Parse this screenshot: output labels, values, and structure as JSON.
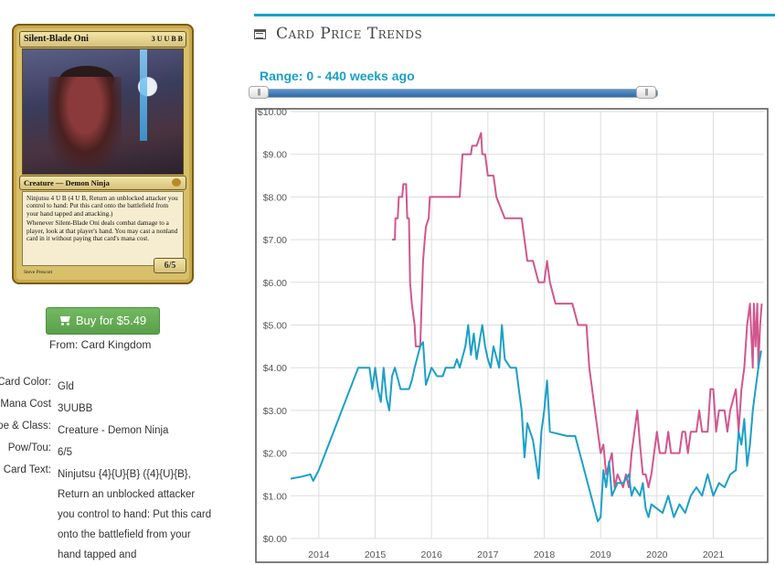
{
  "card": {
    "name": "Silent-Blade Oni",
    "cost": "3 U U B B",
    "type_line": "Creature — Demon Ninja",
    "text_1": "Ninjutsu 4 U B (4 U B, Return an unblocked attacker you control to hand: Put this card onto the battlefield from your hand tapped and attacking.)",
    "text_2": "Whenever Silent-Blade Oni deals combat damage to a player, look at that player's hand. You may cast a nonland card in it without paying that card's mana cost.",
    "pt": "6/5",
    "artist": "Steve Prescott"
  },
  "buy": {
    "label": "Buy for $5.49",
    "from": "From: Card Kingdom"
  },
  "details": [
    {
      "label": "Card Color:",
      "value": "Gld"
    },
    {
      "label": "Mana Cost",
      "value": "3UUBB"
    },
    {
      "label": "Type & Class:",
      "value": "Creature - Demon Ninja"
    },
    {
      "label": "Pow/Tou:",
      "value": "6/5"
    },
    {
      "label": "Card Text:",
      "value": "Ninjutsu {4}{U}{B} ({4}{U}{B}, Return an unblocked attacker you control to hand: Put this card onto the battlefield from your hand tapped and"
    }
  ],
  "panel": {
    "title": "Card Price Trends",
    "range": "Range: 0 - 440 weeks ago"
  },
  "colors": {
    "accent": "#17a2c4",
    "series_pink": "#d1568f",
    "series_blue": "#1aa0c8",
    "buy_green": "#5fa84f"
  },
  "chart_data": {
    "type": "line",
    "y_ticks": [
      "$0.00",
      "$1.00",
      "$2.00",
      "$3.00",
      "$4.00",
      "$5.00",
      "$6.00",
      "$7.00",
      "$8.00",
      "$9.00",
      "$10.00"
    ],
    "x_ticks": [
      "2014",
      "2015",
      "2016",
      "2017",
      "2018",
      "2019",
      "2020",
      "2021"
    ],
    "ylim": [
      0,
      10
    ],
    "xlim": [
      2013.5,
      2021.9
    ],
    "grid": true,
    "series": [
      {
        "color": "#d1568f",
        "points": [
          [
            2015.3,
            7.0
          ],
          [
            2015.35,
            7.0
          ],
          [
            2015.36,
            7.5
          ],
          [
            2015.4,
            7.5
          ],
          [
            2015.42,
            8.0
          ],
          [
            2015.48,
            8.0
          ],
          [
            2015.5,
            8.3
          ],
          [
            2015.55,
            8.3
          ],
          [
            2015.57,
            7.5
          ],
          [
            2015.6,
            7.5
          ],
          [
            2015.62,
            6.0
          ],
          [
            2015.65,
            5.5
          ],
          [
            2015.7,
            5.0
          ],
          [
            2015.72,
            4.5
          ],
          [
            2015.8,
            4.5
          ],
          [
            2015.85,
            6.5
          ],
          [
            2015.88,
            7.0
          ],
          [
            2015.9,
            7.3
          ],
          [
            2015.95,
            7.5
          ],
          [
            2015.97,
            8.0
          ],
          [
            2016.5,
            8.0
          ],
          [
            2016.55,
            9.0
          ],
          [
            2016.7,
            9.0
          ],
          [
            2016.72,
            9.2
          ],
          [
            2016.8,
            9.2
          ],
          [
            2016.88,
            9.5
          ],
          [
            2016.9,
            9.0
          ],
          [
            2016.95,
            9.0
          ],
          [
            2017.0,
            8.5
          ],
          [
            2017.1,
            8.5
          ],
          [
            2017.15,
            8.0
          ],
          [
            2017.3,
            7.5
          ],
          [
            2017.6,
            7.5
          ],
          [
            2017.65,
            7.0
          ],
          [
            2017.7,
            6.5
          ],
          [
            2017.8,
            6.5
          ],
          [
            2017.9,
            6.0
          ],
          [
            2018.0,
            6.0
          ],
          [
            2018.05,
            6.5
          ],
          [
            2018.1,
            6.0
          ],
          [
            2018.2,
            5.5
          ],
          [
            2018.5,
            5.5
          ],
          [
            2018.6,
            5.0
          ],
          [
            2018.75,
            5.0
          ],
          [
            2018.8,
            4.0
          ],
          [
            2018.9,
            3.0
          ],
          [
            2019.0,
            2.0
          ],
          [
            2019.05,
            2.2
          ],
          [
            2019.1,
            1.5
          ],
          [
            2019.2,
            2.0
          ],
          [
            2019.25,
            1.2
          ],
          [
            2019.3,
            1.5
          ],
          [
            2019.4,
            1.2
          ],
          [
            2019.45,
            1.5
          ],
          [
            2019.5,
            1.2
          ],
          [
            2019.55,
            2.0
          ],
          [
            2019.6,
            2.5
          ],
          [
            2019.65,
            3.0
          ],
          [
            2019.7,
            2.2
          ],
          [
            2019.75,
            1.5
          ],
          [
            2019.8,
            1.5
          ],
          [
            2019.85,
            1.2
          ],
          [
            2019.9,
            1.5
          ],
          [
            2019.95,
            2.0
          ],
          [
            2020.0,
            2.5
          ],
          [
            2020.05,
            2.0
          ],
          [
            2020.15,
            2.0
          ],
          [
            2020.2,
            2.5
          ],
          [
            2020.25,
            2.0
          ],
          [
            2020.4,
            2.0
          ],
          [
            2020.45,
            2.5
          ],
          [
            2020.5,
            2.5
          ],
          [
            2020.55,
            2.0
          ],
          [
            2020.6,
            2.5
          ],
          [
            2020.7,
            2.5
          ],
          [
            2020.75,
            3.0
          ],
          [
            2020.8,
            2.5
          ],
          [
            2020.9,
            2.5
          ],
          [
            2020.95,
            3.5
          ],
          [
            2021.0,
            3.5
          ],
          [
            2021.05,
            2.5
          ],
          [
            2021.1,
            3.0
          ],
          [
            2021.2,
            3.0
          ],
          [
            2021.25,
            2.5
          ],
          [
            2021.3,
            3.0
          ],
          [
            2021.4,
            3.5
          ],
          [
            2021.45,
            2.5
          ],
          [
            2021.5,
            3.5
          ],
          [
            2021.55,
            4.0
          ],
          [
            2021.6,
            5.0
          ],
          [
            2021.65,
            5.5
          ],
          [
            2021.7,
            4.0
          ],
          [
            2021.72,
            5.5
          ],
          [
            2021.75,
            4.5
          ],
          [
            2021.78,
            5.5
          ],
          [
            2021.8,
            4.0
          ],
          [
            2021.83,
            5.0
          ],
          [
            2021.86,
            5.5
          ]
        ]
      },
      {
        "color": "#1aa0c8",
        "points": [
          [
            2013.5,
            1.4
          ],
          [
            2013.7,
            1.45
          ],
          [
            2013.85,
            1.5
          ],
          [
            2013.9,
            1.35
          ],
          [
            2014.0,
            1.6
          ],
          [
            2014.7,
            4.0
          ],
          [
            2014.9,
            4.0
          ],
          [
            2014.95,
            3.5
          ],
          [
            2015.0,
            4.0
          ],
          [
            2015.05,
            3.5
          ],
          [
            2015.1,
            3.2
          ],
          [
            2015.15,
            4.0
          ],
          [
            2015.2,
            3.3
          ],
          [
            2015.25,
            3.0
          ],
          [
            2015.3,
            3.8
          ],
          [
            2015.35,
            4.0
          ],
          [
            2015.45,
            3.5
          ],
          [
            2015.6,
            3.5
          ],
          [
            2015.65,
            3.7
          ],
          [
            2015.7,
            4.0
          ],
          [
            2015.8,
            4.5
          ],
          [
            2015.85,
            4.6
          ],
          [
            2015.9,
            3.6
          ],
          [
            2016.0,
            4.0
          ],
          [
            2016.1,
            3.8
          ],
          [
            2016.2,
            3.8
          ],
          [
            2016.25,
            4.0
          ],
          [
            2016.4,
            4.0
          ],
          [
            2016.45,
            4.2
          ],
          [
            2016.5,
            4.0
          ],
          [
            2016.6,
            4.5
          ],
          [
            2016.65,
            5.0
          ],
          [
            2016.7,
            4.3
          ],
          [
            2016.75,
            4.8
          ],
          [
            2016.8,
            4.2
          ],
          [
            2016.9,
            5.0
          ],
          [
            2016.95,
            4.5
          ],
          [
            2017.0,
            4.2
          ],
          [
            2017.05,
            4.0
          ],
          [
            2017.1,
            4.5
          ],
          [
            2017.2,
            4.0
          ],
          [
            2017.25,
            5.0
          ],
          [
            2017.3,
            4.2
          ],
          [
            2017.4,
            4.0
          ],
          [
            2017.5,
            4.0
          ],
          [
            2017.55,
            3.5
          ],
          [
            2017.6,
            3.0
          ],
          [
            2017.65,
            1.9
          ],
          [
            2017.7,
            2.7
          ],
          [
            2017.8,
            2.3
          ],
          [
            2017.9,
            1.4
          ],
          [
            2017.95,
            2.5
          ],
          [
            2018.0,
            3.0
          ],
          [
            2018.05,
            3.7
          ],
          [
            2018.1,
            2.5
          ],
          [
            2018.4,
            2.4
          ],
          [
            2018.55,
            2.4
          ],
          [
            2018.95,
            0.4
          ],
          [
            2019.0,
            0.5
          ],
          [
            2019.05,
            1.6
          ],
          [
            2019.1,
            1.2
          ],
          [
            2019.15,
            1.8
          ],
          [
            2019.2,
            1.0
          ],
          [
            2019.3,
            1.3
          ],
          [
            2019.4,
            1.3
          ],
          [
            2019.5,
            1.5
          ],
          [
            2019.55,
            1.0
          ],
          [
            2019.6,
            1.2
          ],
          [
            2019.7,
            1.0
          ],
          [
            2019.75,
            1.3
          ],
          [
            2019.8,
            0.7
          ],
          [
            2019.85,
            0.5
          ],
          [
            2019.9,
            0.8
          ],
          [
            2020.0,
            0.7
          ],
          [
            2020.1,
            0.6
          ],
          [
            2020.2,
            1.0
          ],
          [
            2020.3,
            0.5
          ],
          [
            2020.4,
            0.8
          ],
          [
            2020.5,
            0.6
          ],
          [
            2020.6,
            1.0
          ],
          [
            2020.7,
            1.2
          ],
          [
            2020.8,
            1.0
          ],
          [
            2020.9,
            1.5
          ],
          [
            2021.0,
            1.0
          ],
          [
            2021.1,
            1.3
          ],
          [
            2021.2,
            1.2
          ],
          [
            2021.3,
            1.5
          ],
          [
            2021.4,
            1.6
          ],
          [
            2021.45,
            2.5
          ],
          [
            2021.5,
            2.2
          ],
          [
            2021.55,
            2.8
          ],
          [
            2021.6,
            1.7
          ],
          [
            2021.65,
            2.2
          ],
          [
            2021.7,
            3.0
          ],
          [
            2021.75,
            3.5
          ],
          [
            2021.8,
            4.0
          ],
          [
            2021.85,
            4.4
          ]
        ]
      }
    ]
  }
}
